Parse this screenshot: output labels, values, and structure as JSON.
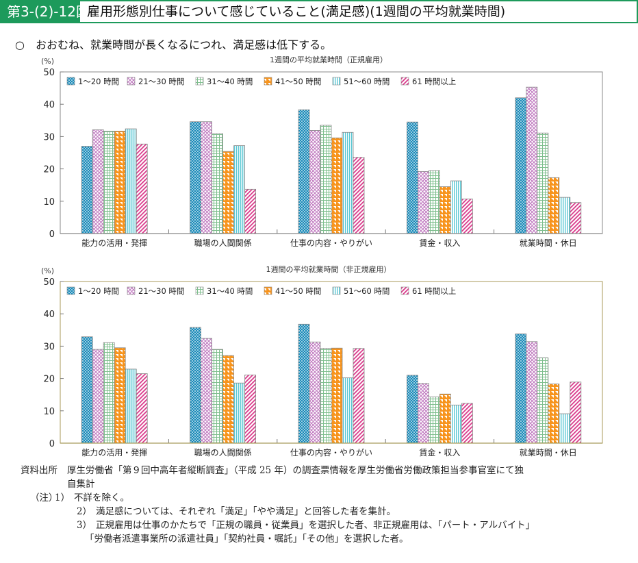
{
  "header": {
    "figure_number": "第3-(2)-12図",
    "title": "雇用形態別仕事について感じていること(満足感)(1週間の平均就業時間)"
  },
  "summary": {
    "bullet": "○",
    "text": "おおむね、就業時間が長くなるにつれ、満足感は低下する。"
  },
  "colors": {
    "header_green": "#1d9a5b",
    "series": [
      "#1a8ab8",
      "#c07ac0",
      "#7fbf8e",
      "#f7941d",
      "#5bc8d4",
      "#d9388a"
    ]
  },
  "chart_data": [
    {
      "type": "bar",
      "title": "1週間の平均就業時間（正規雇用）",
      "ylabel": "(%)",
      "xlabel": "",
      "ylim": [
        0,
        50
      ],
      "yticks": [
        0,
        10,
        20,
        30,
        40,
        50
      ],
      "grid": false,
      "legend_position": "top-left inside",
      "categories": [
        "能力の活用・発揮",
        "職場の人間関係",
        "仕事の内容・やりがい",
        "賃金・収入",
        "就業時間・休日"
      ],
      "series": [
        {
          "name": "1～20 時間",
          "values": [
            27.0,
            34.6,
            38.3,
            34.5,
            42.0
          ]
        },
        {
          "name": "21～30 時間",
          "values": [
            32.1,
            34.6,
            31.9,
            19.2,
            45.3
          ]
        },
        {
          "name": "31～40 時間",
          "values": [
            31.7,
            30.9,
            33.5,
            19.5,
            31.1
          ]
        },
        {
          "name": "41～50 時間",
          "values": [
            31.7,
            25.4,
            29.6,
            14.5,
            17.3
          ]
        },
        {
          "name": "51～60 時間",
          "values": [
            32.4,
            27.2,
            31.3,
            16.3,
            11.2
          ]
        },
        {
          "name": "61 時間以上",
          "values": [
            27.7,
            13.7,
            23.6,
            10.7,
            9.6
          ]
        }
      ]
    },
    {
      "type": "bar",
      "title": "1週間の平均就業時間（非正規雇用）",
      "ylabel": "(%)",
      "xlabel": "",
      "ylim": [
        0,
        50
      ],
      "yticks": [
        0,
        10,
        20,
        30,
        40,
        50
      ],
      "grid": false,
      "legend_position": "top-left inside",
      "categories": [
        "能力の活用・発揮",
        "職場の人間関係",
        "仕事の内容・やりがい",
        "賃金・収入",
        "就業時間・休日"
      ],
      "series": [
        {
          "name": "1～20 時間",
          "values": [
            32.9,
            35.8,
            36.8,
            21.0,
            33.8
          ]
        },
        {
          "name": "21～30 時間",
          "values": [
            29.0,
            32.4,
            31.3,
            18.5,
            31.4
          ]
        },
        {
          "name": "31～40 時間",
          "values": [
            31.1,
            29.0,
            29.3,
            14.3,
            26.4
          ]
        },
        {
          "name": "41～50 時間",
          "values": [
            29.5,
            27.1,
            29.4,
            15.2,
            18.3
          ]
        },
        {
          "name": "51～60 時間",
          "values": [
            22.9,
            18.6,
            20.2,
            11.8,
            9.1
          ]
        },
        {
          "name": "61 時間以上",
          "values": [
            21.5,
            21.1,
            29.3,
            12.3,
            18.9
          ]
        }
      ]
    }
  ],
  "notes": {
    "source_label": "資料出所",
    "source_line1": "厚生労働省「第９回中高年者縦断調査」（平成 25 年）の調査票情報を厚生労働省労働政策担当参事官室にて独",
    "source_line2": "自集計",
    "note_label": "（注）",
    "items": [
      {
        "num": "1）",
        "text": "不詳を除く。"
      },
      {
        "num": "2）",
        "text": "満足感については、それぞれ「満足」「やや満足」と回答した者を集計。"
      },
      {
        "num": "3）",
        "text": "正規雇用は仕事のかたちで「正規の職員・従業員」を選択した者、非正規雇用は、「パート・アルバイト」"
      }
    ],
    "item3_cont": "「労働者派遣事業所の派遣社員」「契約社員・嘱託」「その他」を選択した者。"
  }
}
